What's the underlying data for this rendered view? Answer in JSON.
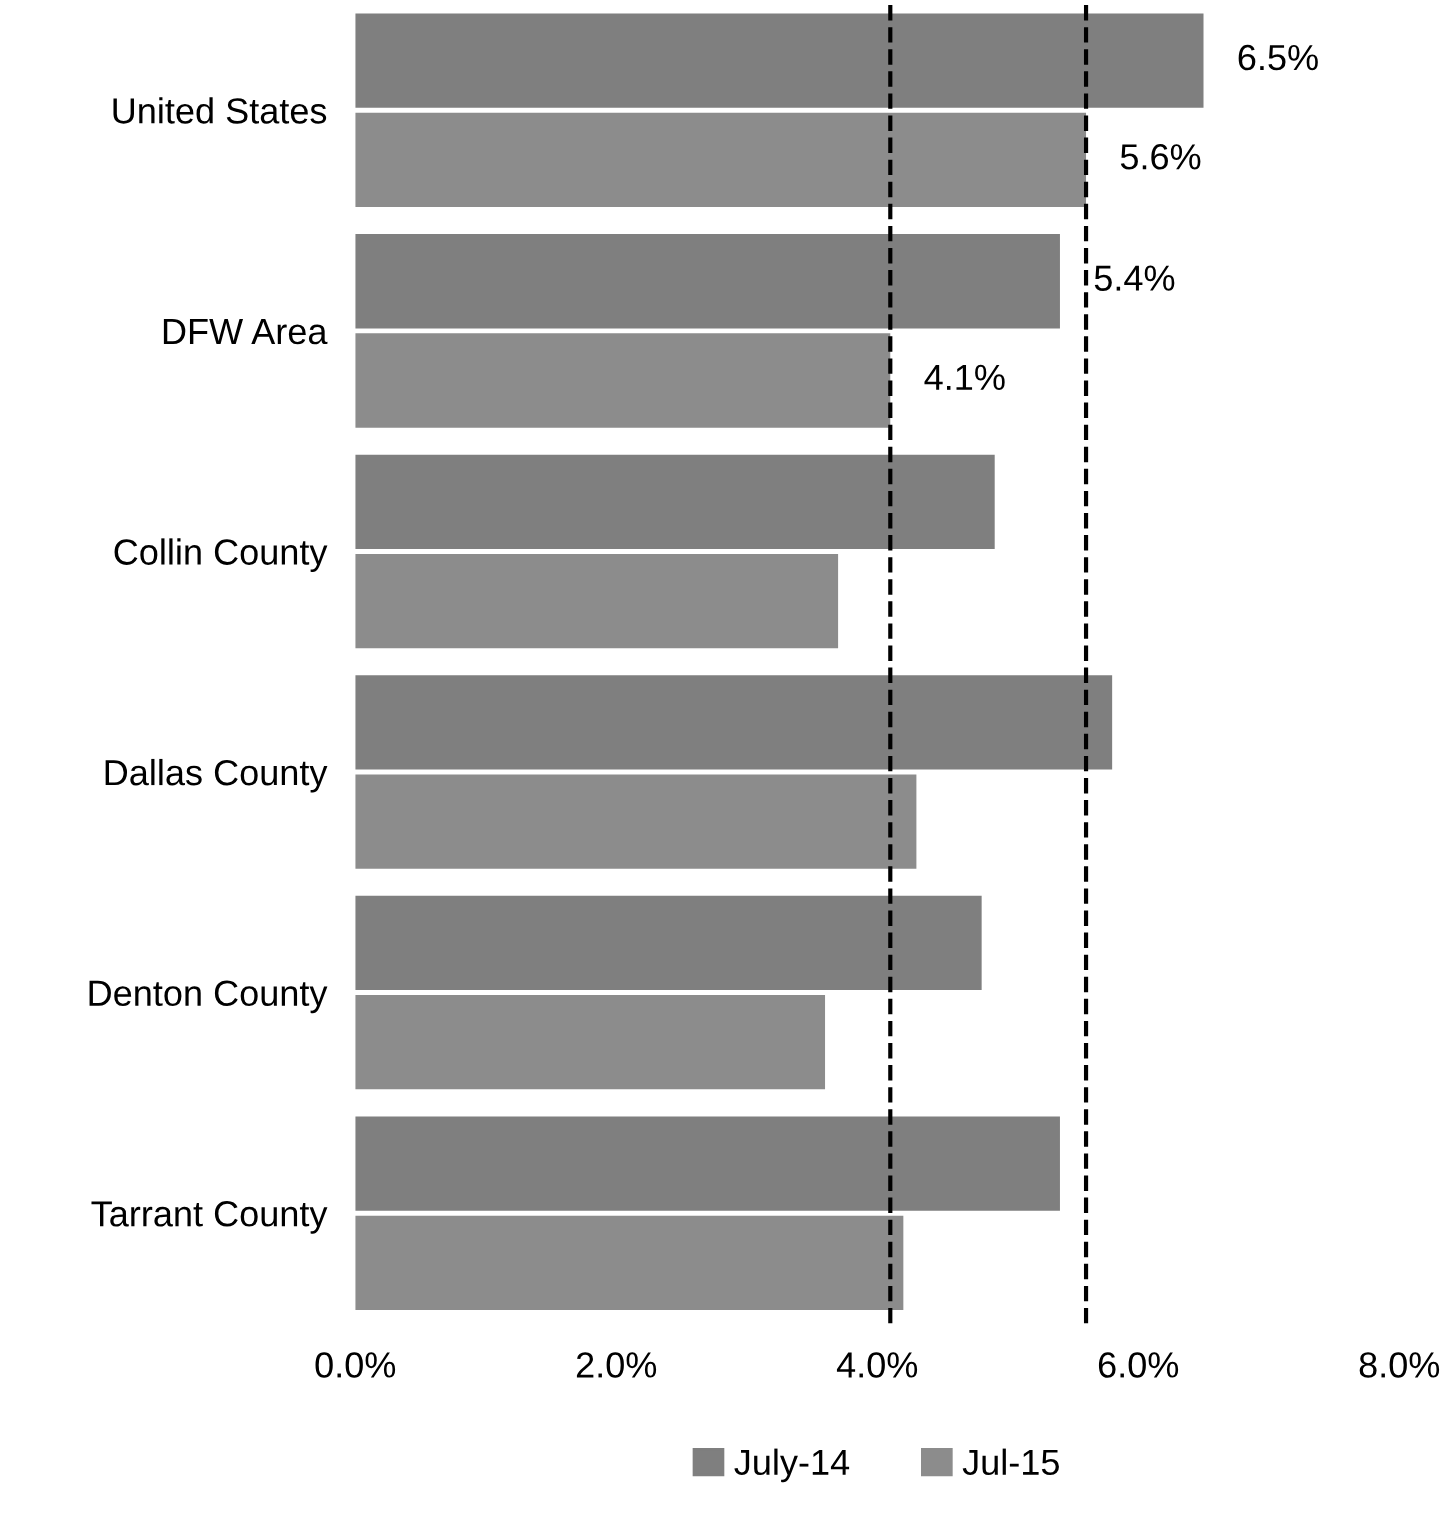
{
  "chart_data": {
    "type": "bar",
    "orientation": "horizontal",
    "categories": [
      "United States",
      "DFW Area",
      "Collin County",
      "Dallas County",
      "Denton County",
      "Tarrant County"
    ],
    "series": [
      {
        "name": "July-14",
        "color": "#7f7f7f",
        "values": [
          6.5,
          5.4,
          4.9,
          5.8,
          4.8,
          5.4
        ],
        "value_labels": [
          "6.5%",
          "5.4%",
          null,
          null,
          null,
          null
        ]
      },
      {
        "name": "Jul-15",
        "color": "#8c8c8c",
        "values": [
          5.6,
          4.1,
          3.7,
          4.3,
          3.6,
          4.2
        ],
        "value_labels": [
          "5.6%",
          "4.1%",
          null,
          null,
          null,
          null
        ]
      }
    ],
    "xlim": [
      0,
      8
    ],
    "xticks": [
      {
        "value": 0,
        "label": "0.0%"
      },
      {
        "value": 2,
        "label": "2.0%"
      },
      {
        "value": 4,
        "label": "4.0%"
      },
      {
        "value": 6,
        "label": "6.0%"
      },
      {
        "value": 8,
        "label": "8.0%"
      }
    ],
    "ref_lines": [
      {
        "axis": "x",
        "value": 4.1,
        "label": null,
        "color": "#000000",
        "line_style": "dashed"
      },
      {
        "axis": "x",
        "value": 5.6,
        "label": null,
        "color": "#000000",
        "line_style": "dashed"
      }
    ],
    "legend": "bottom",
    "grid": false
  }
}
